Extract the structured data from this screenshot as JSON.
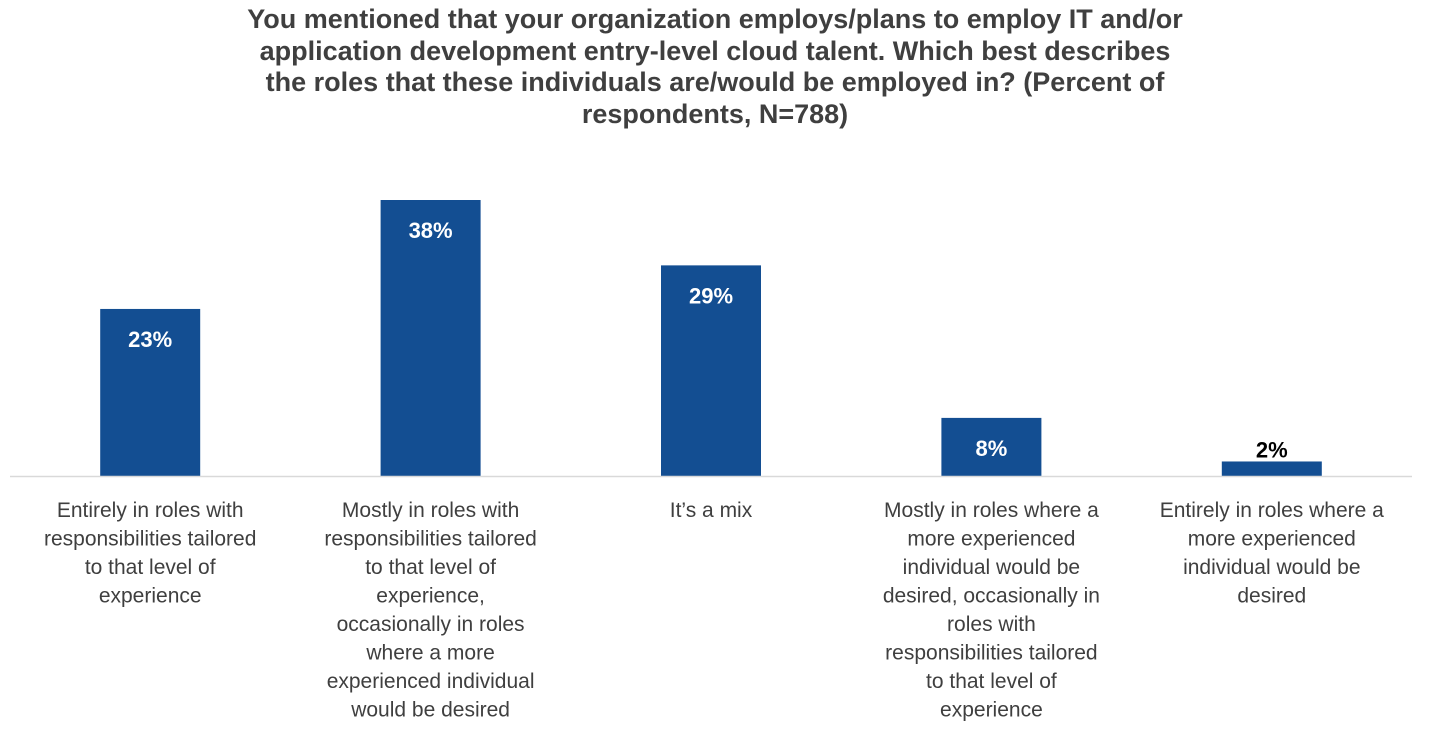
{
  "chart_data": {
    "type": "bar",
    "title_lines": [
      "You mentioned that your organization employs/plans to employ IT and/or",
      "application development entry-level cloud talent. Which best describes",
      "the roles that these individuals are/would be employed in? (Percent of",
      "respondents, N=788)"
    ],
    "categories": [
      "Entirely in roles with responsibilities tailored to that level of experience",
      "Mostly in roles with responsibilities tailored to that level of experience, occasionally in roles where a more experienced individual would be desired",
      "It’s a mix",
      "Mostly in roles where a more experienced individual would be desired, occasionally in roles with responsibilities tailored to that level of experience",
      "Entirely in roles where a more experienced individual would be desired"
    ],
    "category_lines": [
      [
        "Entirely in roles with",
        "responsibilities tailored",
        "to that level of",
        "experience"
      ],
      [
        "Mostly in roles with",
        "responsibilities tailored",
        "to that level of",
        "experience,",
        "occasionally in roles",
        "where a more",
        "experienced individual",
        "would be desired"
      ],
      [
        "It’s a mix"
      ],
      [
        "Mostly in roles where a",
        "more experienced",
        "individual would be",
        "desired, occasionally in",
        "roles with",
        "responsibilities tailored",
        "to that level of",
        "experience"
      ],
      [
        "Entirely in roles where a",
        "more experienced",
        "individual would be",
        "desired"
      ]
    ],
    "values": [
      23,
      38,
      29,
      8,
      2
    ],
    "data_labels": [
      "23%",
      "38%",
      "29%",
      "8%",
      "2%"
    ],
    "ylim": [
      0,
      38
    ],
    "grid": false,
    "bar_color": "#134e92",
    "axis_color": "#d9d9d9",
    "label_color_inside": "#ffffff",
    "label_color_outside": "#000000",
    "text_color": "#3f3f3f"
  }
}
